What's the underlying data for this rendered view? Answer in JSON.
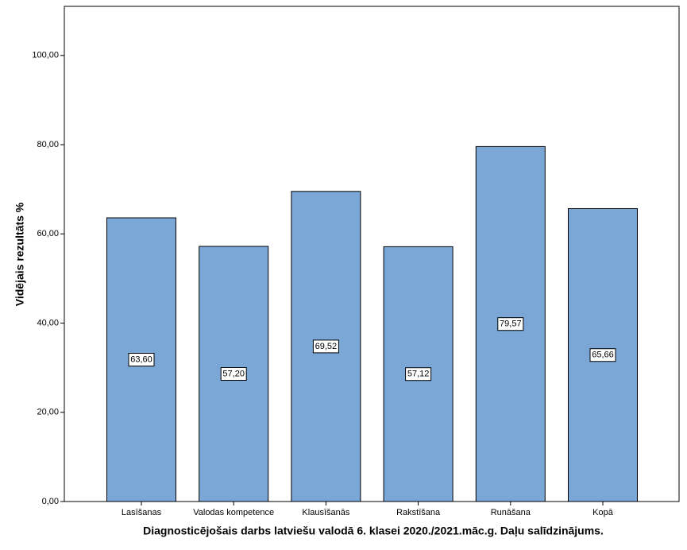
{
  "chart_data": {
    "type": "bar",
    "x_label": "Diagnosticējošais darbs latviešu valodā 6. klasei 2020./2021.māc.g. Daļu salīdzinājums.",
    "y_label": "Vidējais rezultāts %",
    "categories": [
      "Lasīšanas",
      "Valodas kompetence",
      "Klausīšanās",
      "Rakstīšana",
      "Runāšana",
      "Kopā"
    ],
    "values": [
      63.6,
      57.2,
      69.52,
      57.12,
      79.57,
      65.66
    ],
    "value_labels": [
      "63,60",
      "57,20",
      "69,52",
      "57,12",
      "79,57",
      "65,66"
    ],
    "color": "#7ba7d7",
    "ylim": [
      0,
      111
    ],
    "yticks": [
      {
        "value": 0,
        "label": "0,00"
      },
      {
        "value": 20,
        "label": "20,00"
      },
      {
        "value": 40,
        "label": "40,00"
      },
      {
        "value": 60,
        "label": "60,00"
      },
      {
        "value": 80,
        "label": "80,00"
      },
      {
        "value": 100,
        "label": "100,00"
      }
    ]
  }
}
